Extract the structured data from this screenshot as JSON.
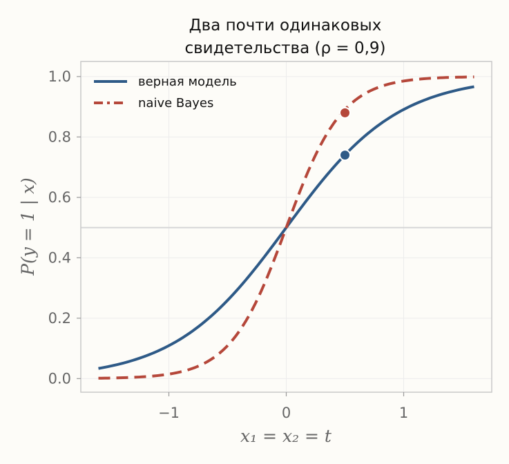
{
  "chart_data": {
    "type": "line",
    "title_line1": "Два почти одинаковых",
    "title_line2": "свидетельства (ρ = 0,9)",
    "xlabel": "x₁ = x₂ = t",
    "ylabel": "P(y = 1 | x)",
    "xlim": [
      -1.75,
      1.75
    ],
    "ylim": [
      -0.045,
      1.05
    ],
    "xticks": [
      -1,
      0,
      1
    ],
    "xtick_labels": [
      "−1",
      "0",
      "1"
    ],
    "yticks": [
      0.0,
      0.2,
      0.4,
      0.6,
      0.8,
      1.0
    ],
    "ytick_labels": [
      "0.0",
      "0.2",
      "0.4",
      "0.6",
      "0.8",
      "1.0"
    ],
    "grid": true,
    "legend_position": "top-left",
    "reference_line": {
      "y": 0.5
    },
    "series": [
      {
        "name": "верная модель",
        "style": "solid",
        "color": "#2e5a87",
        "x": [
          -1.6,
          -1.2,
          -0.8,
          -0.4,
          0.0,
          0.4,
          0.8,
          1.2,
          1.6
        ],
        "y": [
          0.032,
          0.076,
          0.168,
          0.33,
          0.5,
          0.67,
          0.832,
          0.924,
          0.968
        ],
        "marker": {
          "x": 0.5,
          "y": 0.74
        }
      },
      {
        "name": "naive Bayes",
        "style": "dashed",
        "color": "#b5473a",
        "x": [
          -1.6,
          -1.2,
          -0.8,
          -0.4,
          0.0,
          0.4,
          0.8,
          1.2,
          1.6
        ],
        "y": [
          0.001,
          0.006,
          0.033,
          0.158,
          0.5,
          0.842,
          0.967,
          0.994,
          0.999
        ],
        "marker": {
          "x": 0.5,
          "y": 0.88
        }
      }
    ]
  }
}
